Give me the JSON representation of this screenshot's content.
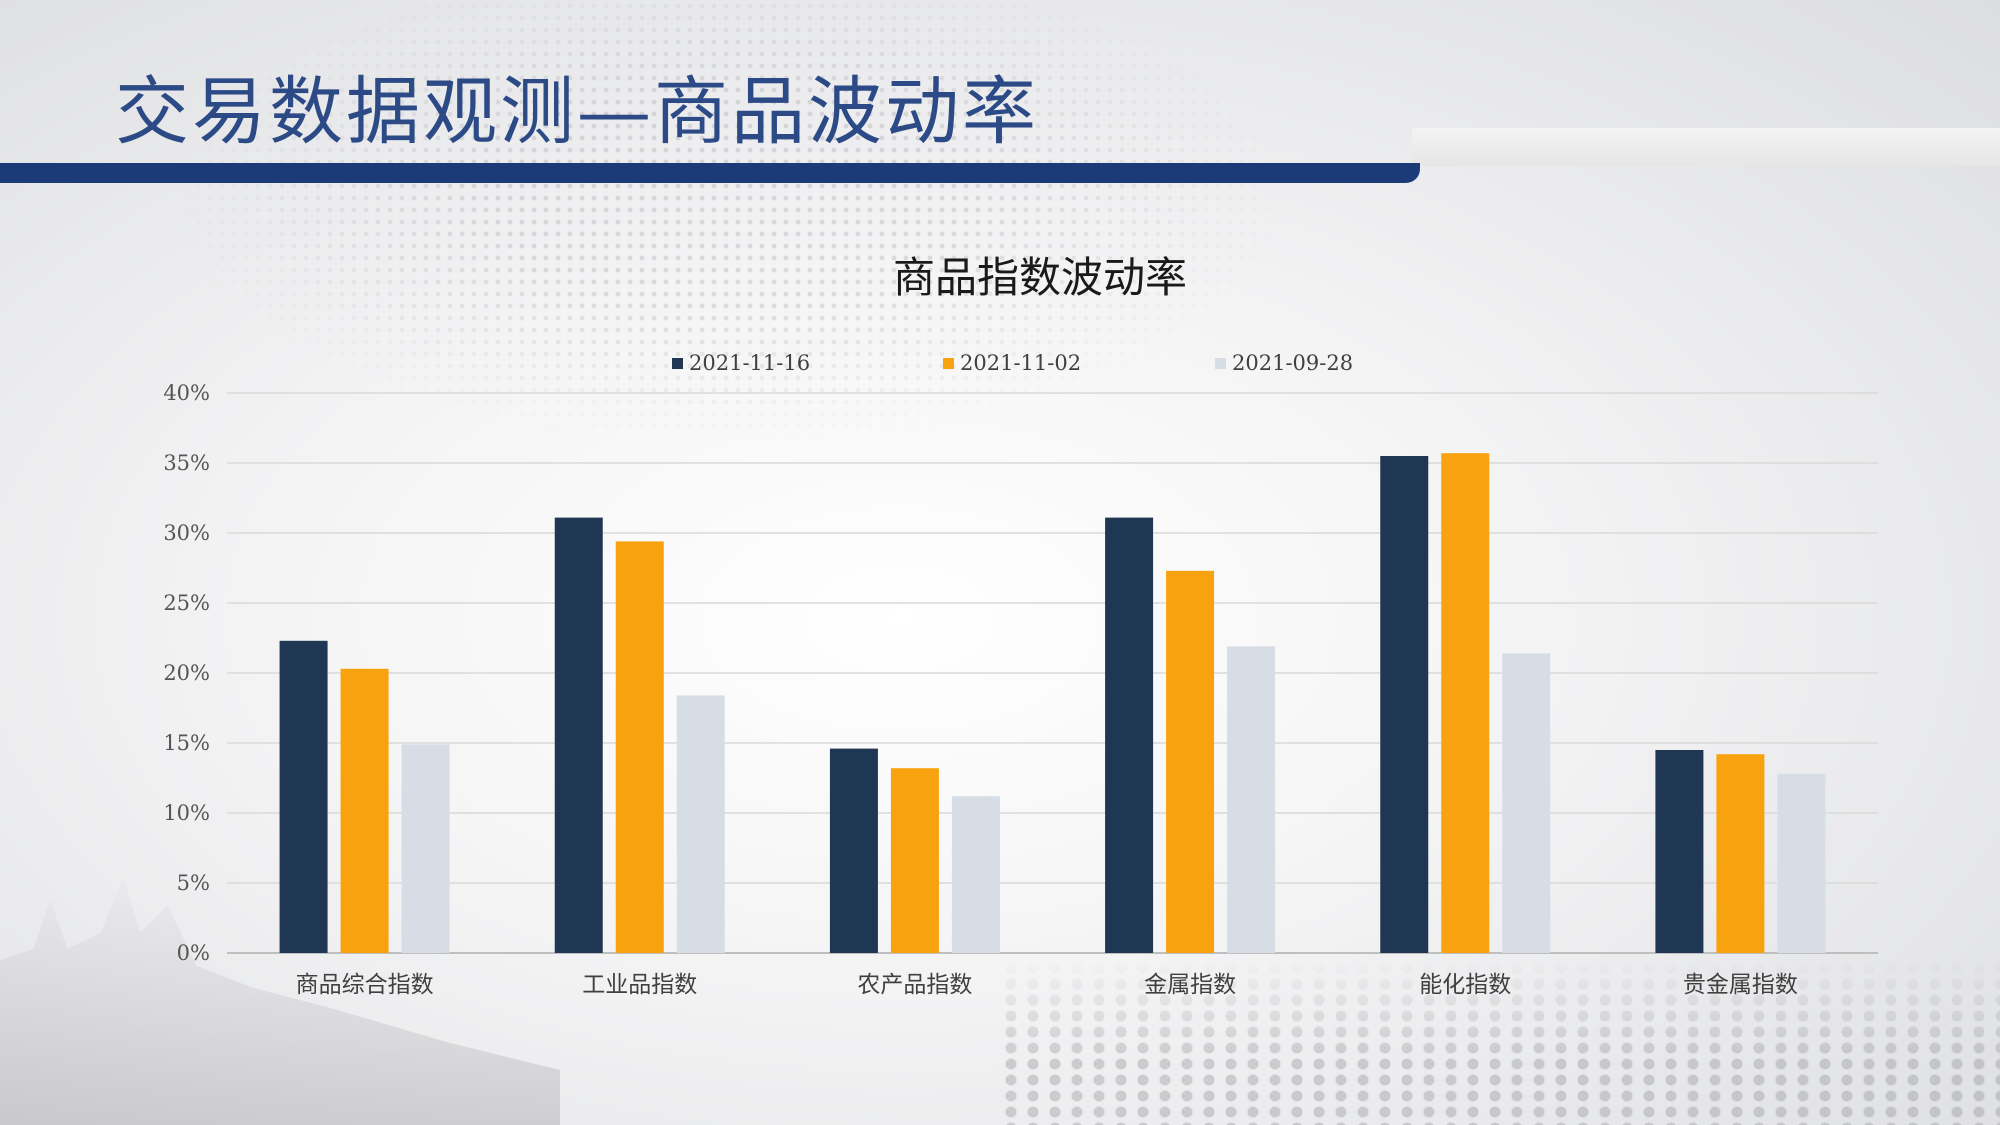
{
  "slide": {
    "title": "交易数据观测—商品波动率"
  },
  "colors": {
    "title": "#2c4a86",
    "band": "#1b3a78"
  },
  "chart_data": {
    "type": "bar",
    "title": "商品指数波动率",
    "categories": [
      "商品综合指数",
      "工业品指数",
      "农产品指数",
      "金属指数",
      "能化指数",
      "贵金属指数"
    ],
    "series": [
      {
        "name": "2021-11-16",
        "color": "#1f3752",
        "values": [
          22.3,
          31.1,
          14.6,
          31.1,
          35.5,
          14.5
        ]
      },
      {
        "name": "2021-11-02",
        "color": "#f9a20f",
        "values": [
          20.3,
          29.4,
          13.2,
          27.3,
          35.7,
          14.2
        ]
      },
      {
        "name": "2021-09-28",
        "color": "#d7dde5",
        "values": [
          14.9,
          18.4,
          11.2,
          21.9,
          21.4,
          12.8
        ]
      }
    ],
    "yticks": [
      "0%",
      "5%",
      "10%",
      "15%",
      "20%",
      "25%",
      "30%",
      "35%",
      "40%"
    ],
    "ylim": [
      0,
      40
    ],
    "grid": true,
    "legend": "top"
  }
}
